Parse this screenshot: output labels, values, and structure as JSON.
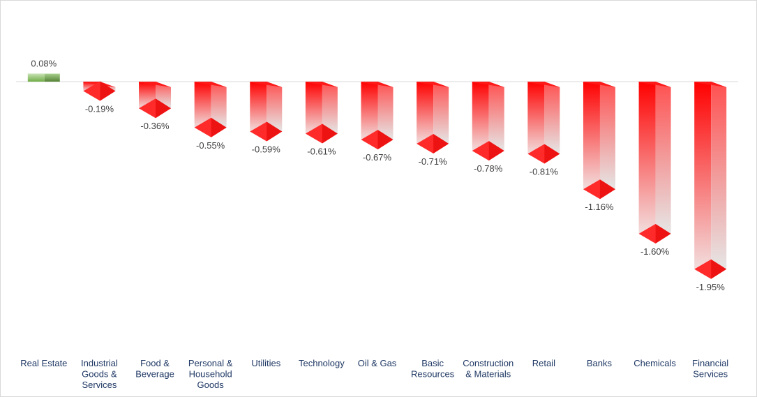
{
  "chart_data": {
    "type": "bar",
    "categories": [
      "Real Estate",
      "Industrial Goods & Services",
      "Food & Beverage",
      "Personal & Household Goods",
      "Utilities",
      "Technology",
      "Oil & Gas",
      "Basic Resources",
      "Construction & Materials",
      "Retail",
      "Banks",
      "Chemicals",
      "Financial Services"
    ],
    "category_lines": [
      [
        "Real Estate"
      ],
      [
        "Industrial",
        "Goods &",
        "Services"
      ],
      [
        "Food &",
        "Beverage"
      ],
      [
        "Personal &",
        "Household",
        "Goods"
      ],
      [
        "Utilities"
      ],
      [
        "Technology"
      ],
      [
        "Oil & Gas"
      ],
      [
        "Basic",
        "Resources"
      ],
      [
        "Construction",
        "& Materials"
      ],
      [
        "Retail"
      ],
      [
        "Banks"
      ],
      [
        "Chemicals"
      ],
      [
        "Financial",
        "Services"
      ]
    ],
    "values": [
      0.08,
      -0.19,
      -0.36,
      -0.55,
      -0.59,
      -0.61,
      -0.67,
      -0.71,
      -0.78,
      -0.81,
      -1.16,
      -1.6,
      -1.95
    ],
    "labels": [
      "0.08%",
      "-0.19%",
      "-0.36%",
      "-0.55%",
      "-0.59%",
      "-0.61%",
      "-0.67%",
      "-0.71%",
      "-0.78%",
      "-0.81%",
      "-1.16%",
      "-1.60%",
      "-1.95%"
    ],
    "unit": "%",
    "ylim": [
      -2.4,
      0.3
    ],
    "grid": false,
    "legend": "none",
    "colors": {
      "positive": "#70ad47",
      "negative": "#ff0000",
      "fade": "#e8e8e8",
      "zero_line": "#d9d9d9",
      "value_label": "#404040",
      "category_label": "#1f3864"
    }
  }
}
